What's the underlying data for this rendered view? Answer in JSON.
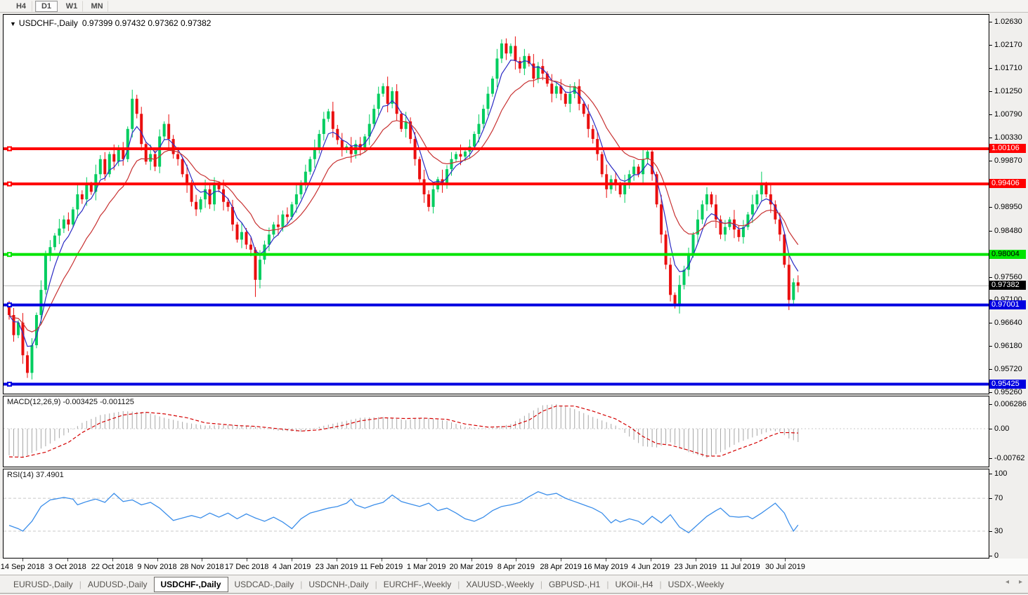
{
  "toolbar": {
    "timeframes": [
      {
        "label": "H4",
        "active": false
      },
      {
        "label": "D1",
        "active": true
      },
      {
        "label": "W1",
        "active": false
      },
      {
        "label": "MN",
        "active": false
      }
    ]
  },
  "chart_data": {
    "type": "candlestick",
    "symbol": "USDCHF",
    "timeframe": "Daily",
    "title_symbol": "USDCHF-,Daily",
    "title_quotes": "0.97399 0.97432 0.97362 0.97382",
    "quote": {
      "open": "0.97399",
      "high": "0.97432",
      "low": "0.97362",
      "close": "0.97382"
    },
    "colors": {
      "bull": "#00cd5f",
      "bear": "#ea0f0f",
      "ma_fast": "#2b2bc4",
      "ma_slow": "#c83232",
      "macd_hist": "#a6a6a6",
      "macd_signal": "#d40000",
      "rsi": "#3b8eea",
      "current_line": "#b8b8b8",
      "grid": "#c8c8c8"
    },
    "y_axis": {
      "tick_labels": [
        "1.02630",
        "1.02170",
        "1.01710",
        "1.01250",
        "1.00790",
        "1.00330",
        "0.99870",
        "0.98950",
        "0.98480",
        "0.97560",
        "0.97100",
        "0.96640",
        "0.96180",
        "0.95720",
        "0.95260"
      ]
    },
    "x_axis": {
      "labels": [
        "14 Sep 2018",
        "3 Oct 2018",
        "22 Oct 2018",
        "9 Nov 2018",
        "28 Nov 2018",
        "17 Dec 2018",
        "4 Jan 2019",
        "23 Jan 2019",
        "11 Feb 2019",
        "1 Mar 2019",
        "20 Mar 2019",
        "8 Apr 2019",
        "28 Apr 2019",
        "16 May 2019",
        "4 Jun 2019",
        "23 Jun 2019",
        "11 Jul 2019",
        "30 Jul 2019"
      ]
    },
    "levels": [
      {
        "label": "1.00106",
        "price": 1.00106,
        "color": "#ff0000",
        "text_color": "#ffffff",
        "kind": "resistance"
      },
      {
        "label": "0.99406",
        "price": 0.99406,
        "color": "#ff0000",
        "text_color": "#ffffff",
        "kind": "resistance"
      },
      {
        "label": "0.98004",
        "price": 0.98004,
        "color": "#00e400",
        "text_color": "#000000",
        "kind": "support"
      },
      {
        "label": "0.97001",
        "price": 0.97001,
        "color": "#0000e0",
        "text_color": "#ffffff",
        "kind": "support"
      },
      {
        "label": "0.95425",
        "price": 0.95425,
        "color": "#0000e0",
        "text_color": "#ffffff",
        "kind": "support"
      }
    ],
    "current_price": {
      "label": "0.97382",
      "price": 0.97382,
      "box_color": "#000000",
      "text_color": "#ffffff"
    },
    "candles": {
      "first_open": 0.97,
      "closes": [
        0.968,
        0.964,
        0.9665,
        0.96,
        0.9565,
        0.962,
        0.968,
        0.973,
        0.98,
        0.9815,
        0.9838,
        0.9852,
        0.987,
        0.986,
        0.989,
        0.992,
        0.991,
        0.994,
        0.9925,
        0.996,
        0.999,
        0.996,
        1.0,
        0.9985,
        1.001,
        0.999,
        1.005,
        1.011,
        1.008,
        1.002,
        0.9985,
        1.0,
        0.9975,
        1.0035,
        1.006,
        1.003,
        1.0,
        0.999,
        0.996,
        0.994,
        0.9905,
        0.989,
        0.991,
        0.993,
        0.99,
        0.994,
        0.993,
        0.9905,
        0.9895,
        0.986,
        0.983,
        0.9845,
        0.982,
        0.981,
        0.975,
        0.979,
        0.982,
        0.984,
        0.986,
        0.9855,
        0.988,
        0.9875,
        0.99,
        0.992,
        0.994,
        0.9965,
        0.999,
        1.001,
        1.004,
        1.007,
        1.0085,
        1.005,
        1.0028,
        1.0008,
        1.0015,
        1.0,
        1.002,
        1.001,
        1.0035,
        1.006,
        1.009,
        1.012,
        1.0135,
        1.01,
        1.0125,
        1.008,
        1.005,
        1.0065,
        1.003,
        0.999,
        0.995,
        0.992,
        0.9895,
        0.993,
        0.995,
        0.994,
        0.997,
        0.999,
        1.0,
        0.9995,
        1.0005,
        1.0015,
        1.004,
        1.006,
        1.009,
        1.012,
        1.015,
        1.019,
        1.022,
        1.02,
        1.0215,
        1.0185,
        1.017,
        1.0195,
        1.018,
        1.015,
        1.0175,
        1.016,
        1.014,
        1.012,
        1.0135,
        1.012,
        1.01,
        1.012,
        1.0135,
        1.01,
        1.008,
        1.005,
        1.003,
        1.0,
        0.996,
        0.993,
        0.995,
        0.994,
        0.992,
        0.994,
        0.996,
        0.9975,
        0.996,
        0.999,
        1.0005,
        0.996,
        0.99,
        0.984,
        0.978,
        0.972,
        0.97,
        0.974,
        0.977,
        0.98,
        0.984,
        0.987,
        0.99,
        0.992,
        0.99,
        0.987,
        0.984,
        0.9855,
        0.987,
        0.985,
        0.9835,
        0.9855,
        0.988,
        0.99,
        0.992,
        0.994,
        0.992,
        0.99,
        0.987,
        0.984,
        0.978,
        0.971,
        0.9745,
        0.97382
      ]
    },
    "wick_overrides": {
      "4": {
        "l": 0.9555
      },
      "27": {
        "h": 1.0128
      },
      "54": {
        "l": 0.9716
      },
      "82": {
        "h": 1.0141
      },
      "109": {
        "h": 1.023
      },
      "141": {
        "h": 1.0012
      },
      "146": {
        "l": 0.9693
      },
      "165": {
        "h": 0.9965
      },
      "171": {
        "l": 0.969
      }
    },
    "moving_averages": [
      {
        "period": 5,
        "color": "#2b2bc4"
      },
      {
        "period": 14,
        "color": "#c83232"
      }
    ],
    "macd": {
      "label": "MACD(12,26,9)",
      "values_text": "-0.003425 -0.001125",
      "axis": [
        "0.006286",
        "0.00",
        "-0.00762"
      ],
      "points": [
        [
          0,
          -0.0068,
          -0.0072
        ],
        [
          3,
          -0.0074,
          -0.0073
        ],
        [
          8,
          -0.0045,
          -0.006
        ],
        [
          13,
          -0.001,
          -0.0035
        ],
        [
          16,
          0.0015,
          -0.001
        ],
        [
          20,
          0.0035,
          0.0015
        ],
        [
          25,
          0.0045,
          0.0035
        ],
        [
          30,
          0.0042,
          0.0042
        ],
        [
          34,
          0.0028,
          0.0038
        ],
        [
          39,
          0.0015,
          0.0028
        ],
        [
          43,
          0.0008,
          0.0015
        ],
        [
          50,
          0.001,
          0.0008
        ],
        [
          54,
          0.0005,
          0.0006
        ],
        [
          59,
          -0.0005,
          0.0
        ],
        [
          64,
          -0.0008,
          -0.0006
        ],
        [
          68,
          0.0005,
          -0.0003
        ],
        [
          73,
          0.0018,
          0.0008
        ],
        [
          77,
          0.0028,
          0.002
        ],
        [
          82,
          0.003,
          0.0028
        ],
        [
          87,
          0.0022,
          0.0026
        ],
        [
          91,
          0.0028,
          0.0027
        ],
        [
          96,
          0.002,
          0.0024
        ],
        [
          100,
          0.0005,
          0.0012
        ],
        [
          105,
          0.0,
          0.0004
        ],
        [
          110,
          0.0012,
          0.0006
        ],
        [
          114,
          0.004,
          0.0022
        ],
        [
          117,
          0.006,
          0.0045
        ],
        [
          120,
          0.0063,
          0.0058
        ],
        [
          124,
          0.005,
          0.0058
        ],
        [
          128,
          0.003,
          0.0045
        ],
        [
          133,
          0.0008,
          0.0025
        ],
        [
          136,
          -0.002,
          0.0005
        ],
        [
          139,
          -0.0045,
          -0.002
        ],
        [
          142,
          -0.0048,
          -0.0038
        ],
        [
          145,
          -0.0035,
          -0.0042
        ],
        [
          149,
          -0.006,
          -0.0055
        ],
        [
          153,
          -0.0075,
          -0.007
        ],
        [
          156,
          -0.006,
          -0.007
        ],
        [
          160,
          -0.0035,
          -0.0052
        ],
        [
          164,
          -0.0018,
          -0.0035
        ],
        [
          167,
          -0.0005,
          -0.0018
        ],
        [
          169,
          -0.0008,
          -0.001
        ],
        [
          171,
          -0.0025,
          -0.001
        ],
        [
          173,
          -0.0034,
          -0.0011
        ]
      ]
    },
    "rsi": {
      "label": "RSI(14)",
      "value_text": "37.4901",
      "axis": [
        "100",
        "70",
        "30",
        "0"
      ],
      "guides": [
        70,
        30
      ],
      "points": [
        [
          0,
          37
        ],
        [
          2,
          33
        ],
        [
          3,
          30
        ],
        [
          5,
          42
        ],
        [
          7,
          60
        ],
        [
          9,
          68
        ],
        [
          12,
          71
        ],
        [
          14,
          69
        ],
        [
          15,
          62
        ],
        [
          17,
          66
        ],
        [
          19,
          69
        ],
        [
          21,
          65
        ],
        [
          23,
          76
        ],
        [
          25,
          66
        ],
        [
          27,
          68
        ],
        [
          29,
          62
        ],
        [
          31,
          65
        ],
        [
          33,
          58
        ],
        [
          35,
          48
        ],
        [
          36,
          43
        ],
        [
          38,
          46
        ],
        [
          40,
          49
        ],
        [
          42,
          46
        ],
        [
          44,
          52
        ],
        [
          46,
          47
        ],
        [
          48,
          52
        ],
        [
          50,
          45
        ],
        [
          52,
          51
        ],
        [
          54,
          46
        ],
        [
          56,
          42
        ],
        [
          58,
          47
        ],
        [
          60,
          41
        ],
        [
          62,
          33
        ],
        [
          64,
          45
        ],
        [
          66,
          52
        ],
        [
          68,
          55
        ],
        [
          70,
          58
        ],
        [
          72,
          60
        ],
        [
          74,
          64
        ],
        [
          75,
          69
        ],
        [
          76,
          62
        ],
        [
          78,
          58
        ],
        [
          80,
          62
        ],
        [
          82,
          65
        ],
        [
          84,
          74
        ],
        [
          86,
          66
        ],
        [
          88,
          63
        ],
        [
          90,
          60
        ],
        [
          92,
          64
        ],
        [
          94,
          55
        ],
        [
          96,
          58
        ],
        [
          98,
          52
        ],
        [
          100,
          45
        ],
        [
          102,
          42
        ],
        [
          104,
          47
        ],
        [
          106,
          55
        ],
        [
          108,
          60
        ],
        [
          110,
          62
        ],
        [
          112,
          65
        ],
        [
          114,
          72
        ],
        [
          116,
          78
        ],
        [
          118,
          74
        ],
        [
          120,
          76
        ],
        [
          122,
          70
        ],
        [
          124,
          66
        ],
        [
          126,
          62
        ],
        [
          128,
          58
        ],
        [
          130,
          52
        ],
        [
          132,
          40
        ],
        [
          133,
          44
        ],
        [
          134,
          41
        ],
        [
          136,
          45
        ],
        [
          138,
          42
        ],
        [
          139,
          38
        ],
        [
          141,
          48
        ],
        [
          143,
          40
        ],
        [
          145,
          50
        ],
        [
          147,
          35
        ],
        [
          149,
          28
        ],
        [
          151,
          38
        ],
        [
          153,
          48
        ],
        [
          155,
          55
        ],
        [
          156,
          58
        ],
        [
          158,
          48
        ],
        [
          160,
          47
        ],
        [
          162,
          48
        ],
        [
          163,
          45
        ],
        [
          165,
          52
        ],
        [
          167,
          60
        ],
        [
          168,
          64
        ],
        [
          170,
          52
        ],
        [
          171,
          40
        ],
        [
          172,
          30
        ],
        [
          173,
          37.49
        ]
      ]
    }
  },
  "tabs": {
    "active_index": 2,
    "scroll_left": "◂",
    "scroll_right": "▸",
    "items": [
      {
        "label": "EURUSD-,Daily"
      },
      {
        "label": "AUDUSD-,Daily"
      },
      {
        "label": "USDCHF-,Daily"
      },
      {
        "label": "USDCAD-,Daily"
      },
      {
        "label": "USDCNH-,Daily"
      },
      {
        "label": "EURCHF-,Weekly"
      },
      {
        "label": "XAUUSD-,Weekly"
      },
      {
        "label": "GBPUSD-,H1"
      },
      {
        "label": "UKOil-,H4"
      },
      {
        "label": "USDX-,Weekly"
      }
    ]
  }
}
